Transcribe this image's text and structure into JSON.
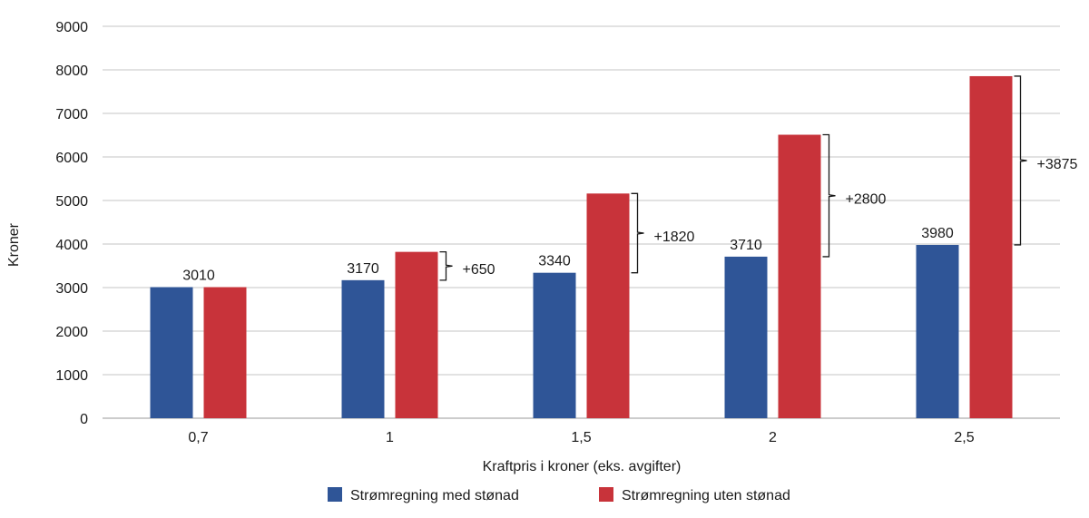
{
  "chart_data": {
    "type": "bar",
    "title": "",
    "xlabel": "Kraftpris i kroner (eks. avgifter)",
    "ylabel": "Kroner",
    "ylim": [
      0,
      9000
    ],
    "yticks": [
      0,
      1000,
      2000,
      3000,
      4000,
      5000,
      6000,
      7000,
      8000,
      9000
    ],
    "grid": true,
    "legend_position": "bottom",
    "categories": [
      "0,7",
      "1",
      "1,5",
      "2",
      "2,5"
    ],
    "series": [
      {
        "name": "Strømregning med stønad",
        "color": "#2f5597",
        "values": [
          3010,
          3170,
          3340,
          3710,
          3980
        ],
        "labels": [
          "3010",
          "3170",
          "3340",
          "3710",
          "3980"
        ]
      },
      {
        "name": "Strømregning uten stønad",
        "color": "#c8333a",
        "values": [
          3010,
          3820,
          5160,
          6510,
          7855
        ],
        "labels": [
          "",
          "",
          "",
          "",
          ""
        ]
      }
    ],
    "differences": [
      {
        "category_index": 1,
        "label": "+650"
      },
      {
        "category_index": 2,
        "label": "+1820"
      },
      {
        "category_index": 3,
        "label": "+2800"
      },
      {
        "category_index": 4,
        "label": "+3875"
      }
    ]
  }
}
